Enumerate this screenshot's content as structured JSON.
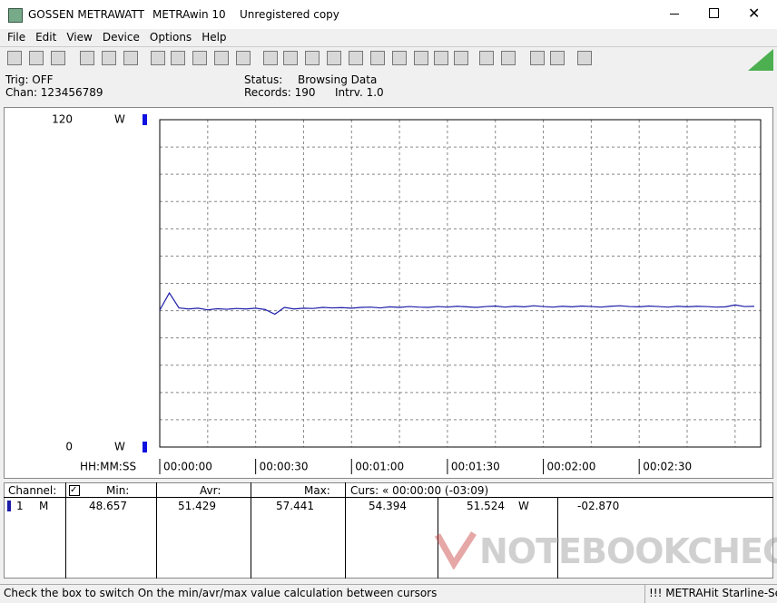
{
  "window": {
    "titles": [
      "GOSSEN METRAWATT",
      "METRAwin 10",
      "Unregistered copy"
    ]
  },
  "menu": [
    "File",
    "Edit",
    "View",
    "Device",
    "Options",
    "Help"
  ],
  "info": {
    "trig": "Trig: OFF",
    "chan": "Chan: 123456789",
    "status_label": "Status:",
    "status": "Browsing Data",
    "records": "Records: 190",
    "interval": "Intrv. 1.0"
  },
  "chart_data": {
    "type": "line",
    "color": "#1c1ca8",
    "y_unit": "W",
    "x_label": "HH:MM:SS",
    "x": [
      0,
      3,
      6,
      9,
      12,
      15,
      18,
      21,
      24,
      27,
      30,
      33,
      36,
      39,
      42,
      45,
      48,
      51,
      54,
      57,
      60,
      63,
      66,
      69,
      72,
      75,
      78,
      81,
      84,
      87,
      90,
      93,
      96,
      99,
      102,
      105,
      108,
      111,
      114,
      117,
      120,
      123,
      126,
      129,
      132,
      135,
      138,
      141,
      144,
      147,
      150,
      153,
      156,
      159,
      162,
      165,
      168,
      171,
      174,
      177,
      180,
      183,
      186
    ],
    "values": [
      50.2,
      56.5,
      51.0,
      50.6,
      50.9,
      50.3,
      50.7,
      50.5,
      50.8,
      50.6,
      50.9,
      50.4,
      48.7,
      51.2,
      50.6,
      50.9,
      50.8,
      51.2,
      51.0,
      51.1,
      50.9,
      51.2,
      51.3,
      51.0,
      51.4,
      51.2,
      51.5,
      51.3,
      51.2,
      51.5,
      51.3,
      51.6,
      51.4,
      51.2,
      51.5,
      51.7,
      51.3,
      51.6,
      51.4,
      51.8,
      51.5,
      51.3,
      51.6,
      51.4,
      51.7,
      51.5,
      51.3,
      51.6,
      51.8,
      51.5,
      51.4,
      51.7,
      51.5,
      51.3,
      51.6,
      51.4,
      51.6,
      51.5,
      51.3,
      51.4,
      52.1,
      51.5,
      51.6
    ],
    "xlim": [
      0,
      188
    ],
    "ylim": [
      0,
      120
    ],
    "yticks": [
      0,
      120
    ],
    "xticks": [
      {
        "value": 0,
        "label": "00:00:00"
      },
      {
        "value": 30,
        "label": "00:00:30"
      },
      {
        "value": 60,
        "label": "00:01:00"
      },
      {
        "value": 90,
        "label": "00:01:30"
      },
      {
        "value": 120,
        "label": "00:02:00"
      },
      {
        "value": 150,
        "label": "00:02:30"
      }
    ],
    "grid": true,
    "y_grid": [
      10,
      20,
      30,
      40,
      50,
      60,
      70,
      80,
      90,
      100,
      110
    ],
    "x_grid": [
      15,
      30,
      45,
      60,
      75,
      90,
      105,
      120,
      135,
      150,
      165,
      180
    ]
  },
  "table": {
    "header": [
      "Channel:",
      "Min:",
      "Avr:",
      "Max:",
      "Curs: « 00:00:00 (-03:09)"
    ],
    "row": [
      "1",
      "M",
      "48.657",
      "51.429",
      "57.441",
      "54.394",
      "51.524",
      "W",
      "-02.870"
    ]
  },
  "watermark": "NOTEBOOKCHECK",
  "status_bar": [
    "Check the box to switch On the min/avr/max value calculation between cursors",
    "!!! METRAHit Starline-Se"
  ]
}
